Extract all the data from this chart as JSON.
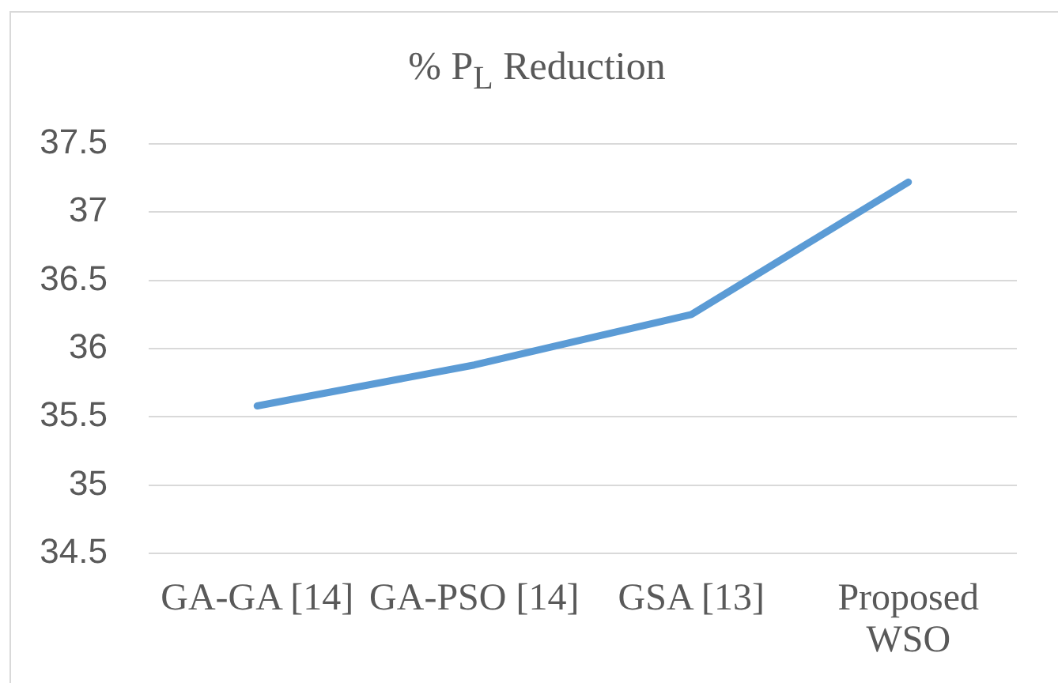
{
  "chart_data": {
    "type": "line",
    "title": "% P$_{L}$ Reduction",
    "categories": [
      "GA-GA [14]",
      "GA-PSO [14]",
      "GSA [13]",
      "Proposed WSO"
    ],
    "series": [
      {
        "color": "#5b9bd5",
        "values": [
          35.58,
          35.88,
          36.25,
          37.22
        ]
      }
    ],
    "ylim": [
      34.5,
      37.5
    ],
    "yticks": [
      34.5,
      35,
      35.5,
      36,
      36.5,
      37,
      37.5
    ],
    "grid": "y",
    "marker": "none"
  }
}
